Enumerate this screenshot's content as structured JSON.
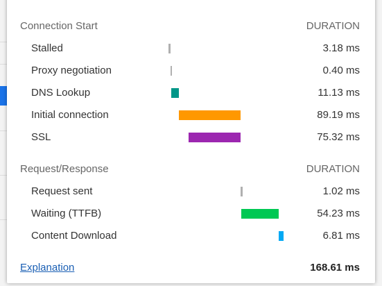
{
  "sections": [
    {
      "title": "Connection Start",
      "column": "DURATION",
      "rows": [
        {
          "label": "Stalled",
          "duration": "3.18 ms",
          "color": "#b0b0b0"
        },
        {
          "label": "Proxy negotiation",
          "duration": "0.40 ms",
          "color": "#b0b0b0"
        },
        {
          "label": "DNS Lookup",
          "duration": "11.13 ms",
          "color": "#009688"
        },
        {
          "label": "Initial connection",
          "duration": "89.19 ms",
          "color": "#ff9800"
        },
        {
          "label": "SSL",
          "duration": "75.32 ms",
          "color": "#9c27b0"
        }
      ]
    },
    {
      "title": "Request/Response",
      "column": "DURATION",
      "rows": [
        {
          "label": "Request sent",
          "duration": "1.02 ms",
          "color": "#b0b0b0"
        },
        {
          "label": "Waiting (TTFB)",
          "duration": "54.23 ms",
          "color": "#00c853"
        },
        {
          "label": "Content Download",
          "duration": "6.81 ms",
          "color": "#03a9f4"
        }
      ]
    }
  ],
  "footer": {
    "link": "Explanation",
    "total": "168.61 ms"
  }
}
